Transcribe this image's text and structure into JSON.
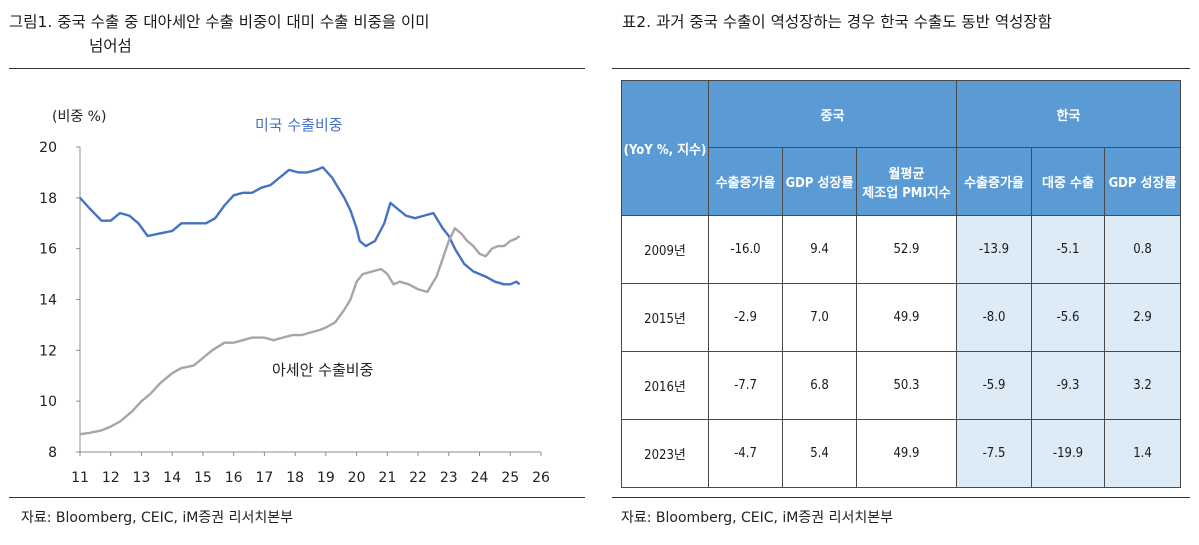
{
  "left_figure": {
    "title_line1": "그림1.  중국 수출 중 대아세안 수출 비중이 대미 수출 비중을 이미",
    "title_line2": "넘어섬",
    "source": "자료: Bloomberg, CEIC, iM증권 리서치본부"
  },
  "right_figure": {
    "title": "표2. 과거 중국 수출이 역성장하는 경우 한국 수출도 동반 역성장함",
    "source": "자료: Bloomberg, CEIC, iM증권 리서치본부"
  },
  "colors": {
    "us_series": "#4472c4",
    "asean_series": "#a6a6a6",
    "header_blue": "#5b9bd5",
    "korea_cell": "#ddebf7"
  },
  "chart_data": {
    "type": "line",
    "ylabel": "(비중 %)",
    "ylim": [
      8,
      20
    ],
    "yticks": [
      8,
      10,
      12,
      14,
      16,
      18,
      20
    ],
    "xlim": [
      11,
      26
    ],
    "xticks": [
      "11",
      "12",
      "13",
      "14",
      "15",
      "16",
      "17",
      "18",
      "19",
      "20",
      "21",
      "22",
      "23",
      "24",
      "25",
      "26"
    ],
    "grid": false,
    "series": [
      {
        "name": "미국 수출비중",
        "color": "#4472c4",
        "points": [
          [
            11.0,
            18.0
          ],
          [
            11.3,
            17.6
          ],
          [
            11.7,
            17.1
          ],
          [
            12.0,
            17.1
          ],
          [
            12.3,
            17.4
          ],
          [
            12.6,
            17.3
          ],
          [
            12.9,
            17.0
          ],
          [
            13.2,
            16.5
          ],
          [
            13.6,
            16.6
          ],
          [
            14.0,
            16.7
          ],
          [
            14.3,
            17.0
          ],
          [
            14.7,
            17.0
          ],
          [
            15.1,
            17.0
          ],
          [
            15.4,
            17.2
          ],
          [
            15.7,
            17.7
          ],
          [
            16.0,
            18.1
          ],
          [
            16.3,
            18.2
          ],
          [
            16.6,
            18.2
          ],
          [
            16.9,
            18.4
          ],
          [
            17.2,
            18.5
          ],
          [
            17.5,
            18.8
          ],
          [
            17.8,
            19.1
          ],
          [
            18.1,
            19.0
          ],
          [
            18.4,
            19.0
          ],
          [
            18.7,
            19.1
          ],
          [
            18.9,
            19.2
          ],
          [
            19.2,
            18.8
          ],
          [
            19.4,
            18.4
          ],
          [
            19.6,
            18.0
          ],
          [
            19.8,
            17.5
          ],
          [
            20.0,
            16.8
          ],
          [
            20.1,
            16.3
          ],
          [
            20.3,
            16.1
          ],
          [
            20.6,
            16.3
          ],
          [
            20.9,
            17.0
          ],
          [
            21.1,
            17.8
          ],
          [
            21.4,
            17.5
          ],
          [
            21.6,
            17.3
          ],
          [
            21.9,
            17.2
          ],
          [
            22.2,
            17.3
          ],
          [
            22.5,
            17.4
          ],
          [
            22.8,
            16.8
          ],
          [
            23.0,
            16.5
          ],
          [
            23.2,
            16.0
          ],
          [
            23.5,
            15.4
          ],
          [
            23.8,
            15.1
          ],
          [
            24.2,
            14.9
          ],
          [
            24.5,
            14.7
          ],
          [
            24.8,
            14.6
          ],
          [
            25.0,
            14.6
          ],
          [
            25.2,
            14.7
          ],
          [
            25.3,
            14.6
          ]
        ]
      },
      {
        "name": "아세안 수출비중",
        "color": "#a6a6a6",
        "points": [
          [
            11.0,
            8.7
          ],
          [
            11.3,
            8.75
          ],
          [
            11.7,
            8.85
          ],
          [
            12.0,
            9.0
          ],
          [
            12.3,
            9.2
          ],
          [
            12.7,
            9.6
          ],
          [
            13.0,
            10.0
          ],
          [
            13.3,
            10.3
          ],
          [
            13.6,
            10.7
          ],
          [
            14.0,
            11.1
          ],
          [
            14.3,
            11.3
          ],
          [
            14.7,
            11.4
          ],
          [
            15.0,
            11.7
          ],
          [
            15.3,
            12.0
          ],
          [
            15.7,
            12.3
          ],
          [
            16.0,
            12.3
          ],
          [
            16.3,
            12.4
          ],
          [
            16.6,
            12.5
          ],
          [
            17.0,
            12.5
          ],
          [
            17.3,
            12.4
          ],
          [
            17.6,
            12.5
          ],
          [
            17.9,
            12.6
          ],
          [
            18.2,
            12.6
          ],
          [
            18.5,
            12.7
          ],
          [
            18.8,
            12.8
          ],
          [
            19.0,
            12.9
          ],
          [
            19.3,
            13.1
          ],
          [
            19.6,
            13.6
          ],
          [
            19.8,
            14.0
          ],
          [
            20.0,
            14.7
          ],
          [
            20.2,
            15.0
          ],
          [
            20.5,
            15.1
          ],
          [
            20.8,
            15.2
          ],
          [
            21.0,
            15.0
          ],
          [
            21.2,
            14.6
          ],
          [
            21.4,
            14.7
          ],
          [
            21.7,
            14.6
          ],
          [
            22.0,
            14.4
          ],
          [
            22.3,
            14.3
          ],
          [
            22.6,
            14.9
          ],
          [
            22.8,
            15.6
          ],
          [
            23.0,
            16.3
          ],
          [
            23.2,
            16.8
          ],
          [
            23.4,
            16.6
          ],
          [
            23.6,
            16.3
          ],
          [
            23.8,
            16.1
          ],
          [
            24.0,
            15.8
          ],
          [
            24.2,
            15.7
          ],
          [
            24.4,
            16.0
          ],
          [
            24.6,
            16.1
          ],
          [
            24.8,
            16.1
          ],
          [
            25.0,
            16.3
          ],
          [
            25.2,
            16.4
          ],
          [
            25.3,
            16.5
          ]
        ]
      }
    ],
    "annotations": [
      {
        "text": "미국 수출비중",
        "series": 0
      },
      {
        "text": "아세안 수출비중",
        "series": 1
      }
    ]
  },
  "table": {
    "corner": "(YoY %, 지수)",
    "group_headers": [
      "중국",
      "한국"
    ],
    "col_headers": [
      [
        "수출증가율"
      ],
      [
        "GDP 성장률"
      ],
      [
        "월평균",
        "제조업 PMI지수"
      ],
      [
        "수출증가율"
      ],
      [
        "대중 수출"
      ],
      [
        "GDP 성장률"
      ]
    ],
    "rows": [
      {
        "year": "2009년",
        "values": [
          "-16.0",
          "9.4",
          "52.9",
          "-13.9",
          "-5.1",
          "0.8"
        ]
      },
      {
        "year": "2015년",
        "values": [
          "-2.9",
          "7.0",
          "49.9",
          "-8.0",
          "-5.6",
          "2.9"
        ]
      },
      {
        "year": "2016년",
        "values": [
          "-7.7",
          "6.8",
          "50.3",
          "-5.9",
          "-9.3",
          "3.2"
        ]
      },
      {
        "year": "2023년",
        "values": [
          "-4.7",
          "5.4",
          "49.9",
          "-7.5",
          "-19.9",
          "1.4"
        ]
      }
    ]
  }
}
